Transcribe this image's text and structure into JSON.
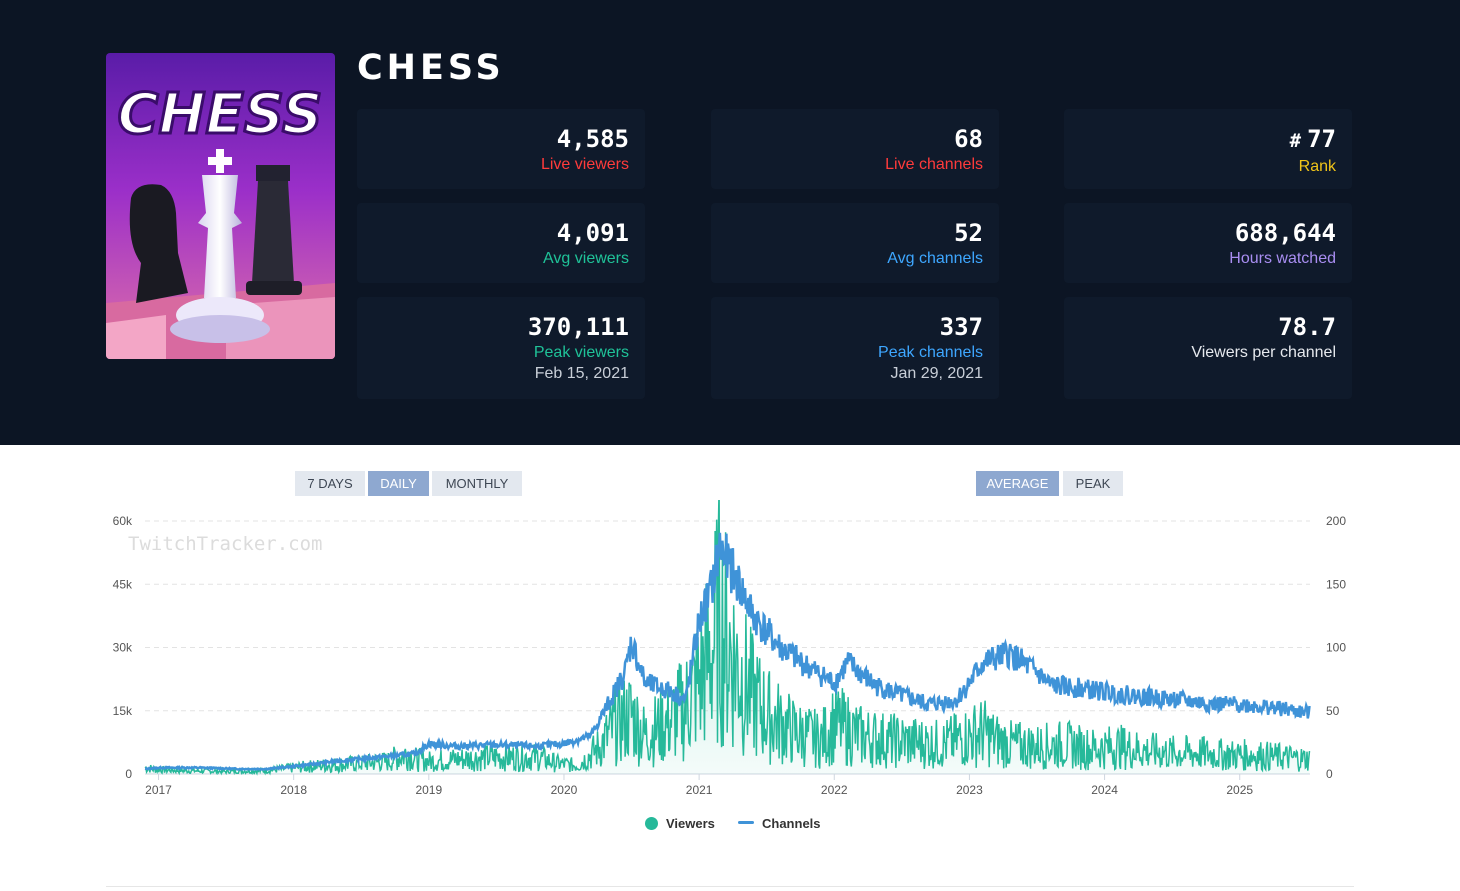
{
  "game": {
    "title": "CHESS",
    "cover_text": "CHESS"
  },
  "stats": [
    {
      "value": "4,585",
      "label": "Live viewers",
      "color": "#ff3b3b"
    },
    {
      "value": "68",
      "label": "Live channels",
      "color": "#ff3b3b"
    },
    {
      "value": "77",
      "hash": "#",
      "label": "Rank",
      "color": "#f0c419"
    },
    {
      "value": "4,091",
      "label": "Avg viewers",
      "color": "#1fc298"
    },
    {
      "value": "52",
      "label": "Avg channels",
      "color": "#3ea7ff"
    },
    {
      "value": "688,644",
      "label": "Hours watched",
      "color": "#a98ef2"
    },
    {
      "value": "370,111",
      "label": "Peak viewers",
      "sub": "Feb 15, 2021",
      "color": "#1fc298"
    },
    {
      "value": "337",
      "label": "Peak channels",
      "sub": "Jan 29, 2021",
      "color": "#3ea7ff"
    },
    {
      "value": "78.7",
      "label": "Viewers per channel",
      "color": "#e6e9ee"
    }
  ],
  "controls": {
    "range": [
      "7 DAYS",
      "DAILY",
      "MONTHLY"
    ],
    "range_active": "DAILY",
    "mode": [
      "AVERAGE",
      "PEAK"
    ],
    "mode_active": "AVERAGE"
  },
  "watermark": "TwitchTracker.com",
  "colors": {
    "viewers": "#26b99a",
    "channels": "#3f93d8"
  },
  "chart_data": {
    "type": "line",
    "title": "",
    "x_ticks": [
      "2017",
      "2018",
      "2019",
      "2020",
      "2021",
      "2022",
      "2023",
      "2024",
      "2025"
    ],
    "y_left_ticks": [
      "0",
      "15k",
      "30k",
      "45k",
      "60k"
    ],
    "y_right_ticks": [
      "0",
      "50",
      "100",
      "150",
      "200"
    ],
    "ylim_left": [
      0,
      60000
    ],
    "ylim_right": [
      0,
      200
    ],
    "xlim": [
      2016.9,
      2025.52
    ],
    "series": [
      {
        "name": "Viewers",
        "axis": "left",
        "x": [
          2016.9,
          2017.0,
          2017.2,
          2017.5,
          2017.8,
          2018.0,
          2018.2,
          2018.5,
          2018.7,
          2018.85,
          2018.9,
          2019.0,
          2019.2,
          2019.5,
          2019.8,
          2019.95,
          2020.1,
          2020.25,
          2020.4,
          2020.5,
          2020.6,
          2020.7,
          2020.8,
          2020.9,
          2021.0,
          2021.1,
          2021.15,
          2021.2,
          2021.3,
          2021.4,
          2021.5,
          2021.6,
          2021.7,
          2021.8,
          2021.9,
          2022.0,
          2022.2,
          2022.4,
          2022.6,
          2022.8,
          2023.0,
          2023.1,
          2023.2,
          2023.3,
          2023.5,
          2023.7,
          2023.9,
          2024.1,
          2024.3,
          2024.5,
          2024.7,
          2024.9,
          2025.1,
          2025.3,
          2025.52
        ],
        "values": [
          1500,
          1000,
          800,
          600,
          800,
          1500,
          2000,
          2500,
          3000,
          5000,
          3500,
          3000,
          3500,
          4000,
          4000,
          2500,
          2000,
          6000,
          12000,
          14000,
          9000,
          11000,
          13000,
          16000,
          22000,
          30000,
          38000,
          32000,
          24000,
          18000,
          14000,
          12000,
          10000,
          9000,
          8000,
          12000,
          9000,
          8000,
          7500,
          7000,
          9000,
          10000,
          8000,
          7000,
          6500,
          7000,
          6000,
          6500,
          5500,
          5000,
          5000,
          4500,
          4500,
          4000,
          3500
        ]
      },
      {
        "name": "Channels",
        "axis": "right",
        "x": [
          2016.9,
          2017.0,
          2017.3,
          2017.6,
          2017.8,
          2018.0,
          2018.3,
          2018.5,
          2018.8,
          2018.9,
          2019.0,
          2019.2,
          2019.5,
          2019.8,
          2020.0,
          2020.2,
          2020.3,
          2020.45,
          2020.5,
          2020.6,
          2020.8,
          2020.9,
          2021.0,
          2021.1,
          2021.15,
          2021.25,
          2021.4,
          2021.6,
          2021.8,
          2022.0,
          2022.1,
          2022.3,
          2022.5,
          2022.7,
          2022.9,
          2023.0,
          2023.1,
          2023.3,
          2023.5,
          2023.6,
          2023.8,
          2024.0,
          2024.2,
          2024.4,
          2024.6,
          2024.8,
          2025.0,
          2025.2,
          2025.4,
          2025.52
        ],
        "values": [
          4,
          5,
          5,
          4,
          4,
          6,
          10,
          12,
          15,
          16,
          24,
          22,
          23,
          22,
          24,
          30,
          50,
          80,
          105,
          72,
          65,
          58,
          120,
          150,
          180,
          160,
          125,
          100,
          85,
          72,
          88,
          70,
          62,
          55,
          58,
          72,
          88,
          95,
          80,
          70,
          68,
          65,
          62,
          60,
          58,
          55,
          55,
          53,
          50,
          48
        ]
      }
    ],
    "legend": [
      "Viewers",
      "Channels"
    ],
    "legend_position": "bottom-center"
  }
}
